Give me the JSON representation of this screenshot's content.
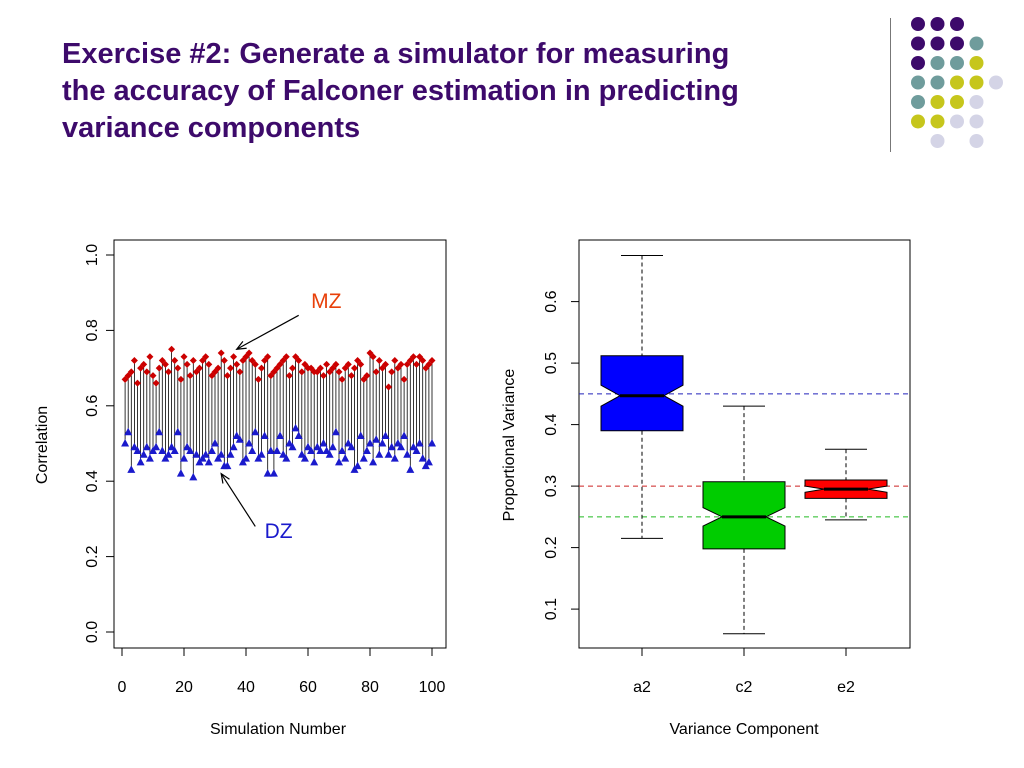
{
  "slide": {
    "title_lines": [
      "Exercise #2: Generate a simulator for measuring",
      "the accuracy of Falconer estimation in predicting",
      "variance components"
    ]
  },
  "decoration": {
    "dot_colors": {
      "purple": "#3d0a6b",
      "teal": "#6f9c9c",
      "olive": "#c6c61c",
      "lavender": "#d4d4e6"
    },
    "dot_rows": [
      [
        "purple",
        "purple",
        "purple",
        null,
        null
      ],
      [
        "purple",
        "purple",
        "purple",
        "teal",
        null
      ],
      [
        "purple",
        "teal",
        "teal",
        "olive",
        null
      ],
      [
        "teal",
        "teal",
        "olive",
        "olive",
        "lavender"
      ],
      [
        "teal",
        "olive",
        "olive",
        "lavender",
        null
      ],
      [
        "olive",
        "olive",
        "lavender",
        "lavender",
        null
      ],
      [
        null,
        "lavender",
        null,
        "lavender",
        null
      ]
    ]
  },
  "chart_data": [
    {
      "type": "scatter",
      "xlabel": "Simulation Number",
      "ylabel": "Correlation",
      "xlim": [
        0,
        100
      ],
      "ylim": [
        0,
        1
      ],
      "xticks": [
        0,
        20,
        40,
        60,
        80,
        100
      ],
      "yticks": [
        0.0,
        0.2,
        0.4,
        0.6,
        0.8,
        1.0
      ],
      "ytick_labels": [
        "0.0",
        "0.2",
        "0.4",
        "0.6",
        "0.8",
        "1.0"
      ],
      "grid": false,
      "series": [
        {
          "name": "MZ",
          "color": "#cc0000",
          "marker": "diamond",
          "x": [
            1,
            2,
            3,
            4,
            5,
            6,
            7,
            8,
            9,
            10,
            11,
            12,
            13,
            14,
            15,
            16,
            17,
            18,
            19,
            20,
            21,
            22,
            23,
            24,
            25,
            26,
            27,
            28,
            29,
            30,
            31,
            32,
            33,
            34,
            35,
            36,
            37,
            38,
            39,
            40,
            41,
            42,
            43,
            44,
            45,
            46,
            47,
            48,
            49,
            50,
            51,
            52,
            53,
            54,
            55,
            56,
            57,
            58,
            59,
            60,
            61,
            62,
            63,
            64,
            65,
            66,
            67,
            68,
            69,
            70,
            71,
            72,
            73,
            74,
            75,
            76,
            77,
            78,
            79,
            80,
            81,
            82,
            83,
            84,
            85,
            86,
            87,
            88,
            89,
            90,
            91,
            92,
            93,
            94,
            95,
            96,
            97,
            98,
            99,
            100
          ],
          "values": [
            0.67,
            0.68,
            0.69,
            0.72,
            0.66,
            0.7,
            0.71,
            0.69,
            0.73,
            0.68,
            0.66,
            0.7,
            0.72,
            0.71,
            0.69,
            0.75,
            0.72,
            0.7,
            0.67,
            0.73,
            0.71,
            0.68,
            0.72,
            0.69,
            0.7,
            0.72,
            0.73,
            0.71,
            0.68,
            0.69,
            0.7,
            0.74,
            0.72,
            0.68,
            0.7,
            0.73,
            0.71,
            0.69,
            0.72,
            0.73,
            0.74,
            0.72,
            0.71,
            0.67,
            0.7,
            0.72,
            0.73,
            0.68,
            0.69,
            0.7,
            0.71,
            0.72,
            0.73,
            0.68,
            0.7,
            0.73,
            0.72,
            0.69,
            0.71,
            0.7,
            0.7,
            0.69,
            0.69,
            0.7,
            0.68,
            0.71,
            0.69,
            0.7,
            0.71,
            0.69,
            0.67,
            0.7,
            0.71,
            0.68,
            0.7,
            0.72,
            0.71,
            0.67,
            0.68,
            0.74,
            0.73,
            0.69,
            0.72,
            0.7,
            0.71,
            0.65,
            0.69,
            0.72,
            0.7,
            0.71,
            0.67,
            0.71,
            0.72,
            0.73,
            0.71,
            0.73,
            0.72,
            0.7,
            0.71,
            0.72
          ]
        },
        {
          "name": "DZ",
          "color": "#1a1acc",
          "marker": "triangle",
          "x": [
            1,
            2,
            3,
            4,
            5,
            6,
            7,
            8,
            9,
            10,
            11,
            12,
            13,
            14,
            15,
            16,
            17,
            18,
            19,
            20,
            21,
            22,
            23,
            24,
            25,
            26,
            27,
            28,
            29,
            30,
            31,
            32,
            33,
            34,
            35,
            36,
            37,
            38,
            39,
            40,
            41,
            42,
            43,
            44,
            45,
            46,
            47,
            48,
            49,
            50,
            51,
            52,
            53,
            54,
            55,
            56,
            57,
            58,
            59,
            60,
            61,
            62,
            63,
            64,
            65,
            66,
            67,
            68,
            69,
            70,
            71,
            72,
            73,
            74,
            75,
            76,
            77,
            78,
            79,
            80,
            81,
            82,
            83,
            84,
            85,
            86,
            87,
            88,
            89,
            90,
            91,
            92,
            93,
            94,
            95,
            96,
            97,
            98,
            99,
            100
          ],
          "values": [
            0.5,
            0.53,
            0.43,
            0.49,
            0.48,
            0.45,
            0.47,
            0.49,
            0.46,
            0.48,
            0.49,
            0.53,
            0.48,
            0.46,
            0.47,
            0.49,
            0.48,
            0.53,
            0.42,
            0.46,
            0.49,
            0.48,
            0.41,
            0.47,
            0.45,
            0.46,
            0.47,
            0.45,
            0.48,
            0.5,
            0.46,
            0.47,
            0.44,
            0.44,
            0.47,
            0.49,
            0.52,
            0.51,
            0.45,
            0.46,
            0.5,
            0.48,
            0.53,
            0.46,
            0.47,
            0.52,
            0.42,
            0.48,
            0.42,
            0.48,
            0.52,
            0.47,
            0.46,
            0.5,
            0.49,
            0.54,
            0.52,
            0.47,
            0.46,
            0.49,
            0.48,
            0.45,
            0.49,
            0.48,
            0.5,
            0.48,
            0.47,
            0.49,
            0.53,
            0.45,
            0.48,
            0.46,
            0.5,
            0.49,
            0.43,
            0.44,
            0.52,
            0.46,
            0.48,
            0.5,
            0.45,
            0.51,
            0.47,
            0.5,
            0.52,
            0.47,
            0.49,
            0.46,
            0.5,
            0.49,
            0.52,
            0.47,
            0.43,
            0.49,
            0.48,
            0.5,
            0.46,
            0.44,
            0.45,
            0.5
          ]
        }
      ],
      "annotations": [
        {
          "text": "MZ",
          "color": "#e8400a",
          "label_at": [
            61,
            0.86
          ],
          "arrow_from": [
            57,
            0.84
          ],
          "arrow_to": [
            37,
            0.75
          ]
        },
        {
          "text": "DZ",
          "color": "#1a1acc",
          "label_at": [
            46,
            0.25
          ],
          "arrow_from": [
            43,
            0.28
          ],
          "arrow_to": [
            32,
            0.42
          ]
        }
      ]
    },
    {
      "type": "box",
      "xlabel": "Variance Component",
      "ylabel": "Proportional Variance",
      "categories": [
        "a2",
        "c2",
        "e2"
      ],
      "ylim": [
        0.035,
        0.7
      ],
      "yticks": [
        0.1,
        0.2,
        0.3,
        0.4,
        0.5,
        0.6
      ],
      "ytick_labels": [
        "0.1",
        "0.2",
        "0.3",
        "0.4",
        "0.5",
        "0.6"
      ],
      "notched": true,
      "grid": false,
      "boxes": [
        {
          "category": "a2",
          "color": "#0000ff",
          "whisker_low": 0.215,
          "q1": 0.39,
          "median": 0.447,
          "q3": 0.512,
          "whisker_high": 0.675,
          "notch_low": 0.43,
          "notch_high": 0.464
        },
        {
          "category": "c2",
          "color": "#00cc00",
          "whisker_low": 0.06,
          "q1": 0.198,
          "median": 0.25,
          "q3": 0.307,
          "whisker_high": 0.43,
          "notch_low": 0.235,
          "notch_high": 0.265
        },
        {
          "category": "e2",
          "color": "#ff0000",
          "whisker_low": 0.245,
          "q1": 0.28,
          "median": 0.295,
          "q3": 0.31,
          "whisker_high": 0.36,
          "notch_low": 0.29,
          "notch_high": 0.3
        }
      ],
      "reference_lines": [
        {
          "value": 0.45,
          "color": "#2222bb"
        },
        {
          "value": 0.3,
          "color": "#cc2222"
        },
        {
          "value": 0.25,
          "color": "#22bb22"
        }
      ]
    }
  ]
}
